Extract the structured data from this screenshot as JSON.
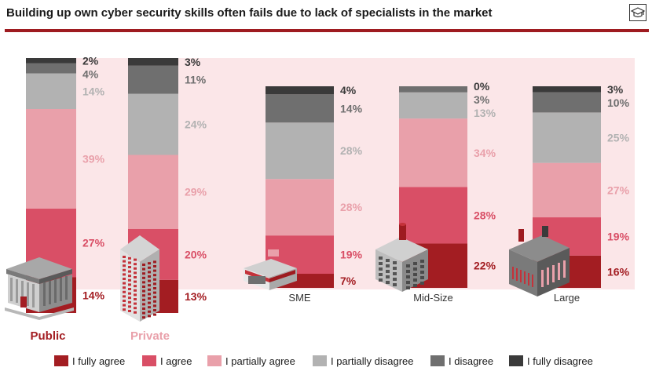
{
  "title": "Building up own cyber security skills often fails due to lack of specialists in the market",
  "colors": {
    "accent": "#9e1b20",
    "panel": "#fbe6e8",
    "fully_agree": "#a31d22",
    "agree": "#d94f66",
    "partially_agree": "#e9a0aa",
    "partially_disagree": "#b2b2b2",
    "disagree": "#6f6f6f",
    "fully_disagree": "#3a3a3a"
  },
  "icons": [
    "mortarboard-icon",
    "government-building-icon",
    "office-tower-icon",
    "shop-icon",
    "factory-chimney-icon",
    "industrial-plant-icon"
  ],
  "chart_data": {
    "type": "bar",
    "stacked": true,
    "categories": [
      "Public",
      "Private",
      "SME",
      "Mid-Size",
      "Large"
    ],
    "series": [
      {
        "name": "I fully agree",
        "values": [
          14,
          13,
          7,
          22,
          16
        ]
      },
      {
        "name": "I agree",
        "values": [
          27,
          20,
          19,
          28,
          19
        ]
      },
      {
        "name": "I partially agree",
        "values": [
          39,
          29,
          28,
          34,
          27
        ]
      },
      {
        "name": "I partially disagree",
        "values": [
          14,
          24,
          28,
          13,
          25
        ]
      },
      {
        "name": "I disagree",
        "values": [
          4,
          11,
          14,
          3,
          10
        ]
      },
      {
        "name": "I fully disagree",
        "values": [
          2,
          3,
          4,
          0,
          3
        ]
      }
    ],
    "value_suffix": "%",
    "legend_position": "bottom"
  }
}
